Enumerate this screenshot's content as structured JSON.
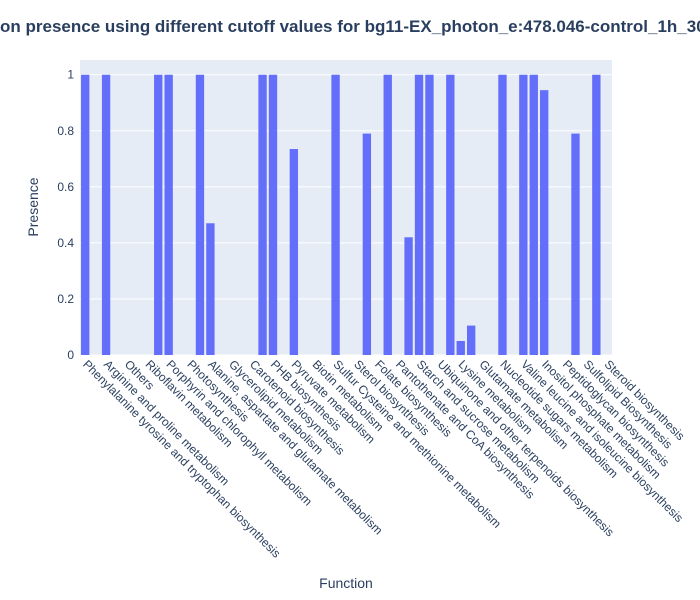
{
  "chart_data": {
    "type": "bar",
    "title": "on presence using different cutoff values for bg11-EX_photon_e:478.046-control_1h_30",
    "x_label": "Function",
    "y_label": "Presence",
    "categories": [
      "Phenylalanine tyrosine and tryptophan biosynthesis",
      null,
      "Arginine and proline metabolism",
      null,
      "Others",
      null,
      "Riboflavin metabolism",
      null,
      "Porphyrin and chlorophyll metabolism",
      null,
      "Photosynthesis",
      null,
      "Alanine, aspartate and glutamate metabolism",
      null,
      "Glycerolipid metabolism",
      null,
      "Carotenoid biosynthesis",
      null,
      "PHB biosynthesis",
      null,
      "Pyruvate metabolism",
      null,
      "Biotin metabolism",
      null,
      "Sulfur Cysteine and methionine metabolism",
      null,
      "Sterol biosynthesis",
      null,
      "Folate biosynthesis",
      null,
      "Pantothenate and CoA biosynthesis",
      null,
      "Starch and sucrose metabolism",
      null,
      "Ubiquinone and other terpenoids biosynthesis",
      null,
      "Lysine metabolism",
      null,
      "Glutamate metabolism",
      null,
      "Nucleotide sugars metabolism",
      null,
      "Valine leucine and isoleucine biosynthesis",
      null,
      "Inositol phosphate metabolism",
      null,
      "Peptidoglycan biosynthesis",
      null,
      "Sulfolipid Biosynthesis",
      null,
      "Steroid biosynthesis"
    ],
    "values": [
      1,
      0,
      1,
      0,
      0,
      0,
      0,
      1,
      1,
      0,
      0,
      1,
      0.47,
      0,
      0,
      0,
      0,
      1,
      1,
      0,
      0.735,
      0,
      0,
      0,
      1,
      0,
      0,
      0.79,
      0,
      1,
      0,
      0.42,
      1,
      1,
      0,
      1,
      0.05,
      0.105,
      0,
      0,
      1,
      0,
      1,
      1,
      0.945,
      0,
      0,
      0.79,
      0,
      1,
      0
    ],
    "color": "#636efa",
    "ylim": [
      0,
      1.0526
    ],
    "yticks": [
      0,
      0.2,
      0.4,
      0.6,
      0.8,
      1
    ],
    "grid": true
  }
}
